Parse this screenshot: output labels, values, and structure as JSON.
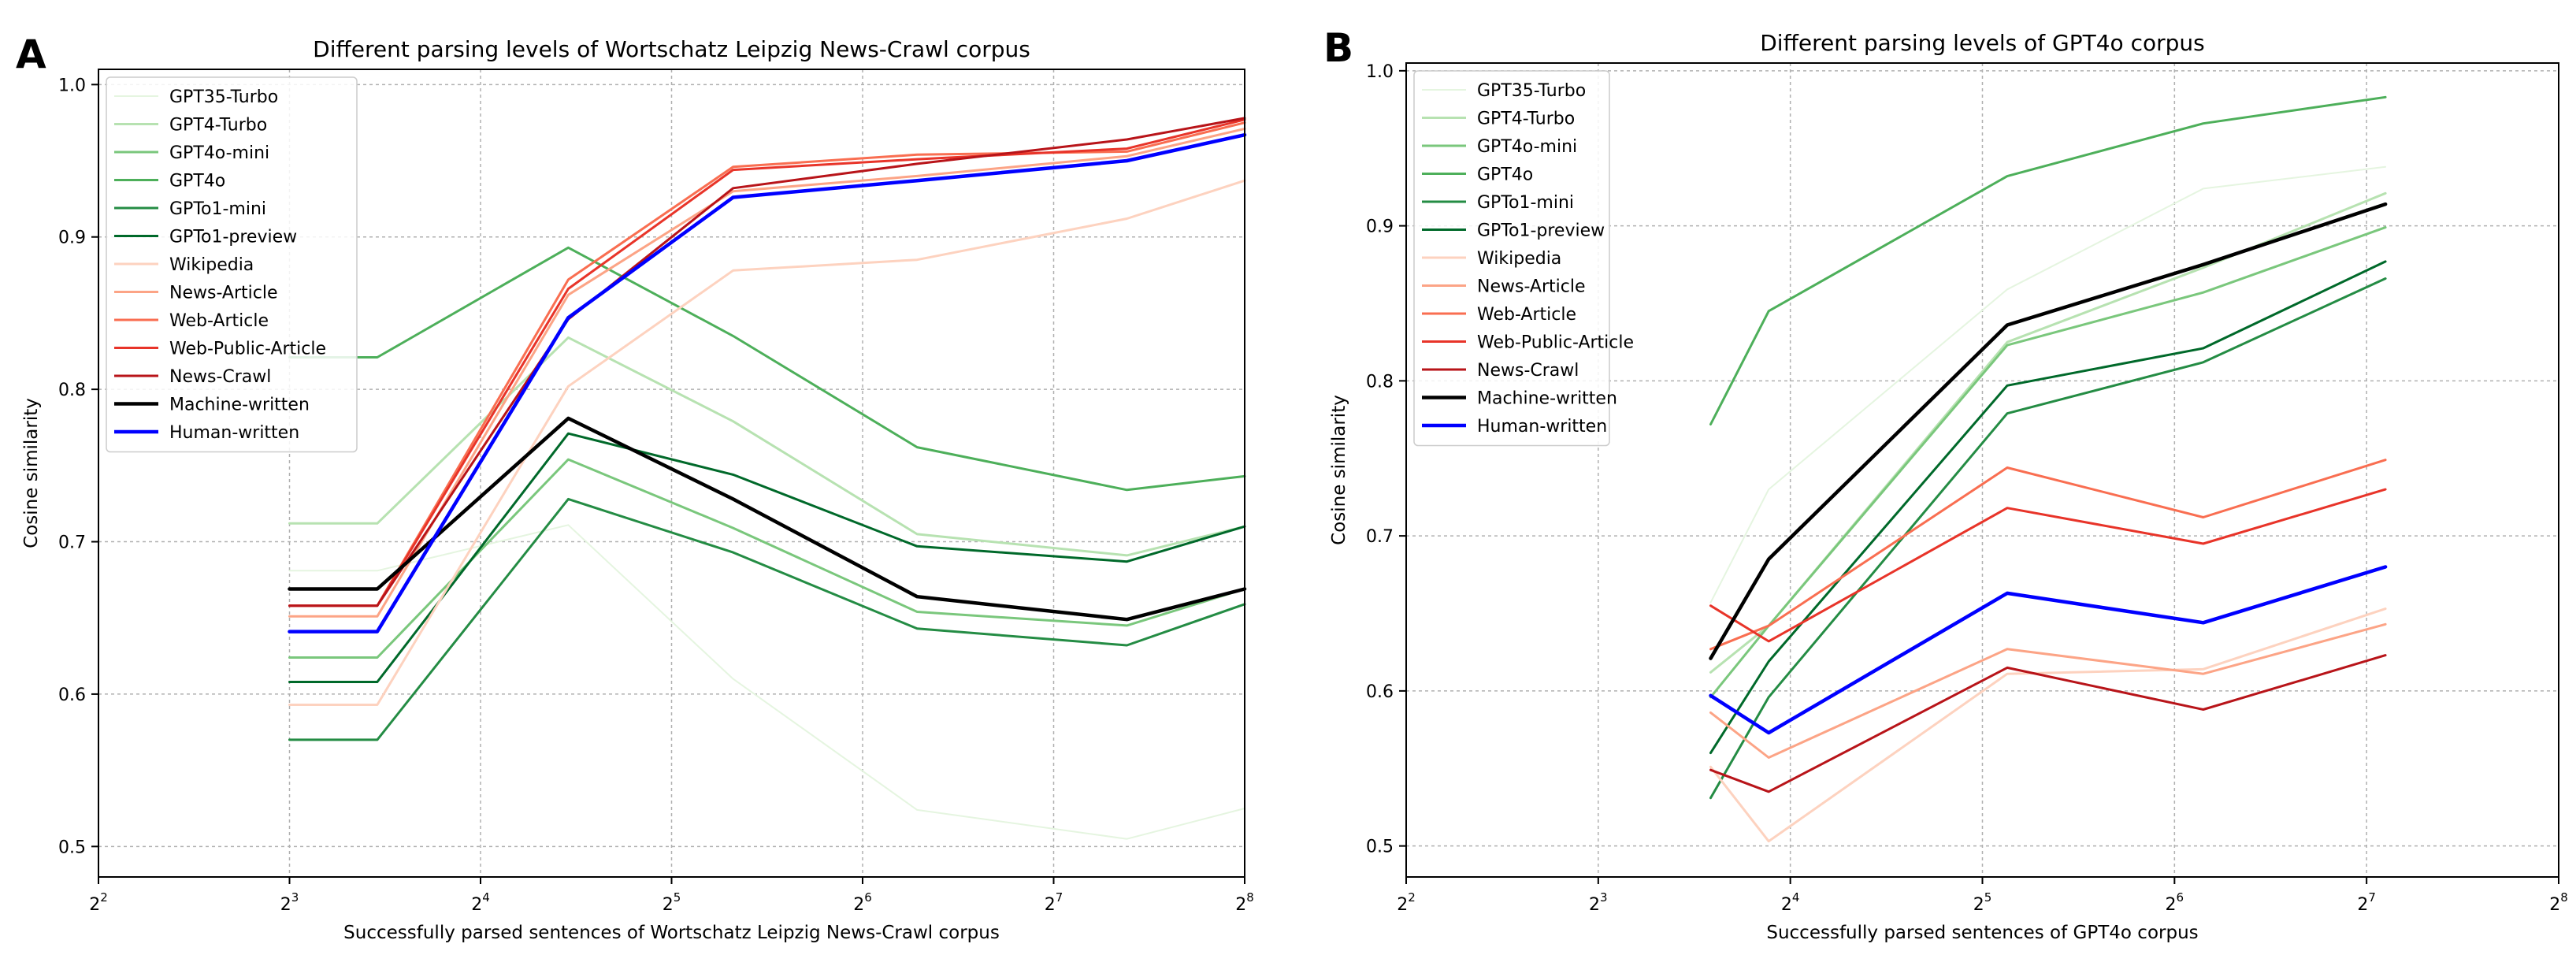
{
  "chart_data": [
    {
      "type": "line",
      "panel_label": "A",
      "title": "Different parsing levels of Wortschatz Leipzig News-Crawl corpus",
      "xlabel": "Successfully parsed sentences of Wortschatz Leipzig News-Crawl corpus",
      "ylabel": "Cosine similarity",
      "x_scale": "log2",
      "x_ticks": [
        4,
        8,
        16,
        32,
        64,
        128,
        256
      ],
      "x_tick_labels": [
        {
          "base": "2",
          "exp": "2"
        },
        {
          "base": "2",
          "exp": "3"
        },
        {
          "base": "2",
          "exp": "4"
        },
        {
          "base": "2",
          "exp": "5"
        },
        {
          "base": "2",
          "exp": "6"
        },
        {
          "base": "2",
          "exp": "7"
        },
        {
          "base": "2",
          "exp": "8"
        }
      ],
      "y_ticks": [
        "0.5",
        "0.6",
        "0.7",
        "0.8",
        "0.9",
        "1.0"
      ],
      "xlim": [
        4,
        256
      ],
      "ylim": [
        0.48,
        1.01
      ],
      "grid": true,
      "legend_position": "upper-left",
      "x": [
        8,
        11,
        22,
        40,
        78,
        167,
        256
      ],
      "series": [
        {
          "name": "GPT35-Turbo",
          "color": "#e5f5e0",
          "width": 2,
          "values": [
            0.681,
            0.681,
            0.711,
            0.61,
            0.524,
            0.505,
            0.525
          ]
        },
        {
          "name": "GPT4-Turbo",
          "color": "#b7e2b1",
          "width": 3,
          "values": [
            0.712,
            0.712,
            0.834,
            0.779,
            0.705,
            0.691,
            0.71
          ]
        },
        {
          "name": "GPT4o-mini",
          "color": "#7ac77c",
          "width": 3,
          "values": [
            0.624,
            0.624,
            0.754,
            0.709,
            0.654,
            0.645,
            0.669
          ]
        },
        {
          "name": "GPT4o",
          "color": "#4daf5a",
          "width": 3,
          "values": [
            0.821,
            0.821,
            0.893,
            0.835,
            0.762,
            0.734,
            0.743
          ]
        },
        {
          "name": "GPTo1-mini",
          "color": "#248c44",
          "width": 3,
          "values": [
            0.57,
            0.57,
            0.728,
            0.693,
            0.643,
            0.632,
            0.659
          ]
        },
        {
          "name": "GPTo1-preview",
          "color": "#00692a",
          "width": 3,
          "values": [
            0.608,
            0.608,
            0.771,
            0.744,
            0.697,
            0.687,
            0.71
          ]
        },
        {
          "name": "Wikipedia",
          "color": "#fdd2bf",
          "width": 3,
          "values": [
            0.593,
            0.593,
            0.802,
            0.878,
            0.885,
            0.912,
            0.937
          ]
        },
        {
          "name": "News-Article",
          "color": "#fca486",
          "width": 3,
          "values": [
            0.651,
            0.651,
            0.862,
            0.93,
            0.94,
            0.953,
            0.971
          ]
        },
        {
          "name": "Web-Article",
          "color": "#f96e51",
          "width": 3,
          "values": [
            0.658,
            0.658,
            0.872,
            0.946,
            0.954,
            0.956,
            0.975
          ]
        },
        {
          "name": "Web-Public-Article",
          "color": "#e83429",
          "width": 3,
          "values": [
            0.658,
            0.658,
            0.866,
            0.944,
            0.951,
            0.958,
            0.977
          ]
        },
        {
          "name": "News-Crawl",
          "color": "#b81419",
          "width": 3,
          "values": [
            0.658,
            0.658,
            0.846,
            0.932,
            0.948,
            0.964,
            0.978
          ]
        },
        {
          "name": "Machine-written",
          "color": "#000000",
          "width": 4.5,
          "values": [
            0.669,
            0.669,
            0.781,
            0.728,
            0.664,
            0.649,
            0.669
          ]
        },
        {
          "name": "Human-written",
          "color": "#0000ff",
          "width": 4.5,
          "values": [
            0.641,
            0.641,
            0.847,
            0.926,
            0.937,
            0.95,
            0.967
          ]
        }
      ]
    },
    {
      "type": "line",
      "panel_label": "B",
      "title": "Different parsing levels of GPT4o corpus",
      "xlabel": "Successfully parsed sentences of GPT4o corpus",
      "ylabel": "Cosine similarity",
      "x_scale": "log2",
      "x_ticks": [
        4,
        8,
        16,
        32,
        64,
        128,
        256
      ],
      "x_tick_labels": [
        {
          "base": "2",
          "exp": "2"
        },
        {
          "base": "2",
          "exp": "3"
        },
        {
          "base": "2",
          "exp": "4"
        },
        {
          "base": "2",
          "exp": "5"
        },
        {
          "base": "2",
          "exp": "6"
        },
        {
          "base": "2",
          "exp": "7"
        },
        {
          "base": "2",
          "exp": "8"
        }
      ],
      "y_ticks": [
        "0.5",
        "0.6",
        "0.7",
        "0.8",
        "0.9",
        "1.0"
      ],
      "xlim": [
        4,
        256
      ],
      "ylim": [
        0.48,
        1.005
      ],
      "grid": true,
      "legend_position": "upper-left",
      "x": [
        12,
        14.8,
        35,
        71,
        137
      ],
      "series": [
        {
          "name": "GPT35-Turbo",
          "color": "#e5f5e0",
          "width": 2,
          "values": [
            0.657,
            0.73,
            0.859,
            0.924,
            0.938
          ]
        },
        {
          "name": "GPT4-Turbo",
          "color": "#b7e2b1",
          "width": 3,
          "values": [
            0.612,
            0.642,
            0.825,
            0.873,
            0.921
          ]
        },
        {
          "name": "GPT4o-mini",
          "color": "#7ac77c",
          "width": 3,
          "values": [
            0.596,
            0.642,
            0.823,
            0.857,
            0.899
          ]
        },
        {
          "name": "GPT4o",
          "color": "#4daf5a",
          "width": 3,
          "values": [
            0.772,
            0.845,
            0.932,
            0.966,
            0.983
          ]
        },
        {
          "name": "GPTo1-mini",
          "color": "#248c44",
          "width": 3,
          "values": [
            0.531,
            0.596,
            0.779,
            0.812,
            0.866
          ]
        },
        {
          "name": "GPTo1-preview",
          "color": "#00692a",
          "width": 3,
          "values": [
            0.56,
            0.619,
            0.797,
            0.821,
            0.877
          ]
        },
        {
          "name": "Wikipedia",
          "color": "#fdd2bf",
          "width": 3,
          "values": [
            0.551,
            0.503,
            0.611,
            0.614,
            0.653
          ]
        },
        {
          "name": "News-Article",
          "color": "#fca486",
          "width": 3,
          "values": [
            0.586,
            0.557,
            0.627,
            0.611,
            0.643
          ]
        },
        {
          "name": "Web-Article",
          "color": "#f96e51",
          "width": 3,
          "values": [
            0.627,
            0.642,
            0.744,
            0.712,
            0.749
          ]
        },
        {
          "name": "Web-Public-Article",
          "color": "#e83429",
          "width": 3,
          "values": [
            0.655,
            0.632,
            0.718,
            0.695,
            0.73
          ]
        },
        {
          "name": "News-Crawl",
          "color": "#b81419",
          "width": 3,
          "values": [
            0.549,
            0.535,
            0.615,
            0.588,
            0.623
          ]
        },
        {
          "name": "Machine-written",
          "color": "#000000",
          "width": 4.5,
          "values": [
            0.621,
            0.685,
            0.836,
            0.875,
            0.914
          ]
        },
        {
          "name": "Human-written",
          "color": "#0000ff",
          "width": 4.5,
          "values": [
            0.597,
            0.573,
            0.663,
            0.644,
            0.68
          ]
        }
      ]
    }
  ]
}
